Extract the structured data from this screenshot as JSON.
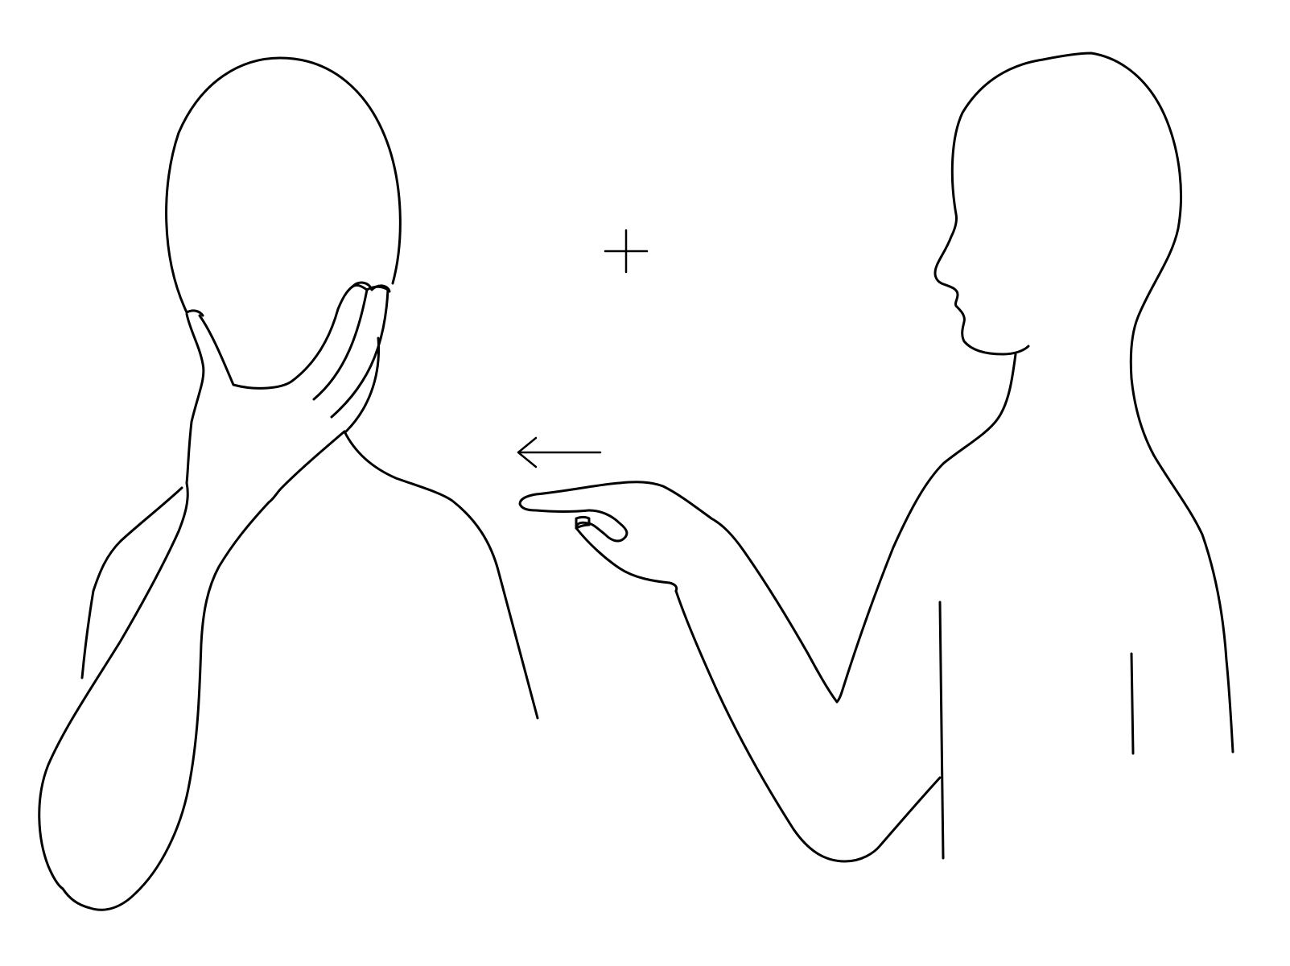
{
  "figure": {
    "type": "line-drawing",
    "elements": [
      "left-person-icon",
      "right-person-icon",
      "plus-icon",
      "arrow-left-icon"
    ],
    "colors": {
      "stroke": "#000000",
      "background": "#ffffff"
    }
  }
}
